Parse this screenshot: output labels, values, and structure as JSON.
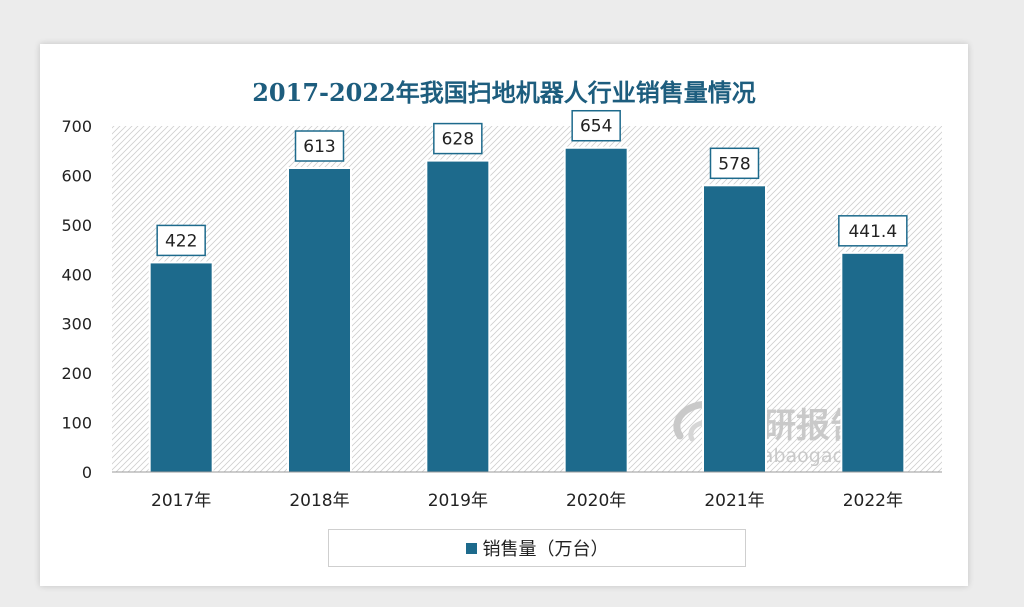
{
  "chart_data": {
    "type": "bar",
    "title": "2017-2022年我国扫地机器人行业销售量情况",
    "categories": [
      "2017年",
      "2018年",
      "2019年",
      "2020年",
      "2021年",
      "2022年"
    ],
    "series": [
      {
        "name": "销售量（万台）",
        "values": [
          422,
          613,
          628,
          654,
          578,
          441.4
        ]
      }
    ],
    "data_labels": [
      "422",
      "613",
      "628",
      "654",
      "578",
      "441.4"
    ],
    "yticks": [
      "0",
      "100",
      "200",
      "300",
      "400",
      "500",
      "600",
      "700"
    ],
    "ylim": [
      0,
      700
    ],
    "grid": false,
    "legend_position": "bottom"
  },
  "watermark": {
    "cn": "观研报告网",
    "en": "chinabaogao.com"
  },
  "colors": {
    "bar": "#1d6a8c",
    "title": "#1d5d7e",
    "hatch": "#cfcfcf",
    "axis": "#9a9a9a"
  }
}
